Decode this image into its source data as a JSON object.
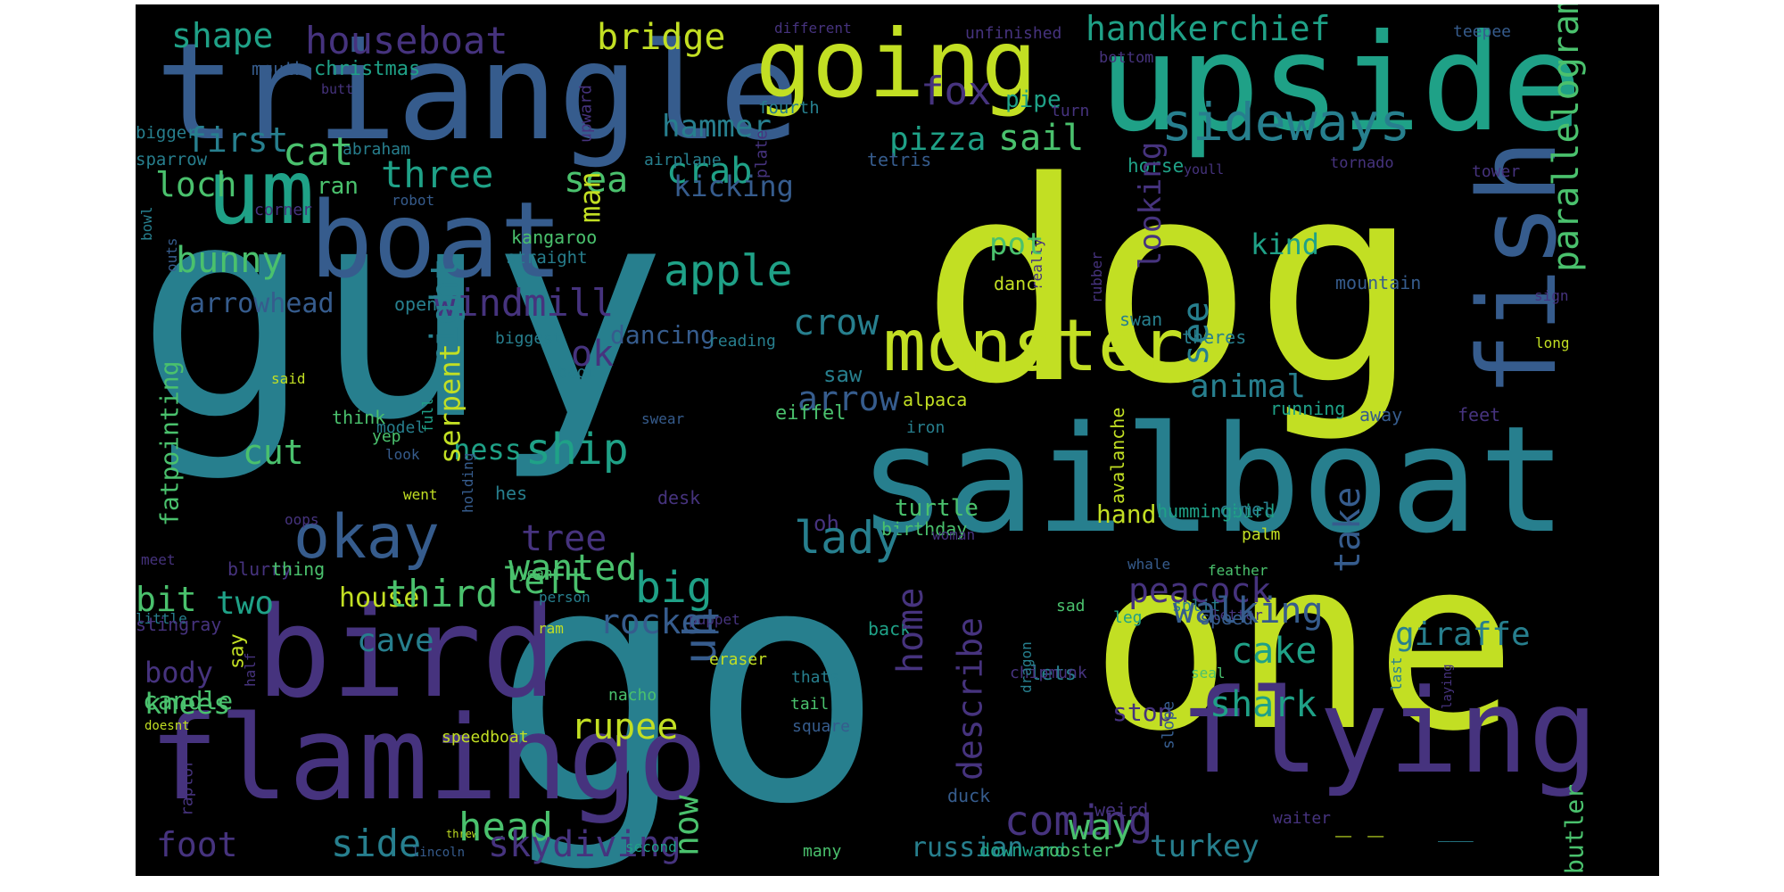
{
  "palette": [
    "#440154",
    "#46337e",
    "#365c8d",
    "#277f8e",
    "#1fa187",
    "#4ac16d",
    "#a0da39",
    "#fde725"
  ],
  "words": [
    {
      "text": "guy",
      "color": "#277f8e"
    },
    {
      "text": "go",
      "color": "#277f8e"
    },
    {
      "text": "dog",
      "color": "#c2df23"
    },
    {
      "text": "one",
      "color": "#c2df23"
    },
    {
      "text": "sailboat",
      "color": "#277f8e"
    },
    {
      "text": "triangle",
      "color": "#365c8d"
    },
    {
      "text": "upside",
      "color": "#1fa187"
    },
    {
      "text": "going",
      "color": "#c2df23"
    },
    {
      "text": "boat",
      "color": "#365c8d"
    },
    {
      "text": "um",
      "color": "#1fa187"
    },
    {
      "text": "bird",
      "color": "#46337e"
    },
    {
      "text": "flamingo",
      "color": "#46337e"
    },
    {
      "text": "flying",
      "color": "#46337e"
    },
    {
      "text": "fish",
      "color": "#365c8d"
    },
    {
      "text": "monster",
      "color": "#c2df23"
    },
    {
      "text": "okay",
      "color": "#365c8d"
    },
    {
      "text": "sideways",
      "color": "#277f8e"
    },
    {
      "text": "houseboat",
      "color": "#46337e"
    },
    {
      "text": "handkerchief",
      "color": "#1fa187"
    },
    {
      "text": "bridge",
      "color": "#c2df23"
    },
    {
      "text": "shape",
      "color": "#1fa187"
    },
    {
      "text": "christmas",
      "color": "#1fa187"
    },
    {
      "text": "mouth",
      "color": "#365c8d"
    },
    {
      "text": "butt",
      "color": "#46337e"
    },
    {
      "text": "different",
      "color": "#46337e"
    },
    {
      "text": "unfinished",
      "color": "#46337e"
    },
    {
      "text": "bottom",
      "color": "#46337e"
    },
    {
      "text": "teepee",
      "color": "#365c8d"
    },
    {
      "text": "parallelogram",
      "color": "#4ac16d"
    },
    {
      "text": "fox",
      "color": "#46337e"
    },
    {
      "text": "pipe",
      "color": "#1fa187"
    },
    {
      "text": "fourth",
      "color": "#277f8e"
    },
    {
      "text": "turn",
      "color": "#46337e"
    },
    {
      "text": "hammer",
      "color": "#277f8e"
    },
    {
      "text": "pizza",
      "color": "#1fa187"
    },
    {
      "text": "sail",
      "color": "#4ac16d"
    },
    {
      "text": "first",
      "color": "#277f8e"
    },
    {
      "text": "cat",
      "color": "#4ac16d"
    },
    {
      "text": "three",
      "color": "#1fa187"
    },
    {
      "text": "crab",
      "color": "#1fa187"
    },
    {
      "text": "sea",
      "color": "#4ac16d"
    },
    {
      "text": "upward",
      "color": "#46337e"
    },
    {
      "text": "bigger",
      "color": "#277f8e"
    },
    {
      "text": "sparrow",
      "color": "#277f8e"
    },
    {
      "text": "abraham",
      "color": "#277f8e"
    },
    {
      "text": "airplane",
      "color": "#277f8e"
    },
    {
      "text": "plate",
      "color": "#46337e"
    },
    {
      "text": "tetris",
      "color": "#365c8d"
    },
    {
      "text": "horse",
      "color": "#1fa187"
    },
    {
      "text": "youll",
      "color": "#46337e"
    },
    {
      "text": "tornado",
      "color": "#46337e"
    },
    {
      "text": "tower",
      "color": "#46337e"
    },
    {
      "text": "loch",
      "color": "#4ac16d"
    },
    {
      "text": "ran",
      "color": "#4ac16d"
    },
    {
      "text": "man",
      "color": "#c2df23"
    },
    {
      "text": "kicking",
      "color": "#365c8d"
    },
    {
      "text": "robot",
      "color": "#365c8d"
    },
    {
      "text": "bowl",
      "color": "#277f8e"
    },
    {
      "text": "corner",
      "color": "#46337e"
    },
    {
      "text": "outs",
      "color": "#365c8d"
    },
    {
      "text": "kangaroo",
      "color": "#4ac16d"
    },
    {
      "text": "straight",
      "color": "#277f8e"
    },
    {
      "text": "bunny",
      "color": "#4ac16d"
    },
    {
      "text": "really",
      "color": "#46337e"
    },
    {
      "text": "pot",
      "color": "#4ac16d"
    },
    {
      "text": "looking",
      "color": "#46337e"
    },
    {
      "text": "kind",
      "color": "#1fa187"
    },
    {
      "text": "sign",
      "color": "#46337e"
    },
    {
      "text": "mountain",
      "color": "#365c8d"
    },
    {
      "text": "apple",
      "color": "#1fa187"
    },
    {
      "text": "arrowhead",
      "color": "#365c8d"
    },
    {
      "text": "windmill",
      "color": "#46337e"
    },
    {
      "text": "right",
      "color": "#277f8e"
    },
    {
      "text": "open",
      "color": "#277f8e"
    },
    {
      "text": "crow",
      "color": "#277f8e"
    },
    {
      "text": "rubber",
      "color": "#46337e"
    },
    {
      "text": "dance",
      "color": "#c2df23"
    },
    {
      "text": "swan",
      "color": "#277f8e"
    },
    {
      "text": "long",
      "color": "#c2df23"
    },
    {
      "text": "fatpointing",
      "color": "#4ac16d"
    },
    {
      "text": "biggest",
      "color": "#277f8e"
    },
    {
      "text": "ok",
      "color": "#46337e"
    },
    {
      "text": "dancing",
      "color": "#365c8d"
    },
    {
      "text": "reading",
      "color": "#277f8e"
    },
    {
      "text": "see",
      "color": "#277f8e"
    },
    {
      "text": "theres",
      "color": "#277f8e"
    },
    {
      "text": "said",
      "color": "#c2df23"
    },
    {
      "text": "boot",
      "color": "#277f8e"
    },
    {
      "text": "saw",
      "color": "#277f8e"
    },
    {
      "text": "animal",
      "color": "#277f8e"
    },
    {
      "text": "arrow",
      "color": "#365c8d"
    },
    {
      "text": "alpaca",
      "color": "#c2df23"
    },
    {
      "text": "think",
      "color": "#4ac16d"
    },
    {
      "text": "full",
      "color": "#1fa187"
    },
    {
      "text": "yep",
      "color": "#4ac16d"
    },
    {
      "text": "ship",
      "color": "#1fa187"
    },
    {
      "text": "swear",
      "color": "#365c8d"
    },
    {
      "text": "eiffel",
      "color": "#4ac16d"
    },
    {
      "text": "iron",
      "color": "#277f8e"
    },
    {
      "text": "running",
      "color": "#1fa187"
    },
    {
      "text": "away",
      "color": "#365c8d"
    },
    {
      "text": "feet",
      "color": "#46337e"
    },
    {
      "text": "cut",
      "color": "#4ac16d"
    },
    {
      "text": "model",
      "color": "#277f8e"
    },
    {
      "text": "ness",
      "color": "#1fa187"
    },
    {
      "text": "serpent",
      "color": "#c2df23"
    },
    {
      "text": "look",
      "color": "#365c8d"
    },
    {
      "text": "oops",
      "color": "#46337e"
    },
    {
      "text": "hes",
      "color": "#277f8e"
    },
    {
      "text": "went",
      "color": "#c2df23"
    },
    {
      "text": "holding",
      "color": "#365c8d"
    },
    {
      "text": "desk",
      "color": "#46337e"
    },
    {
      "text": "oh",
      "color": "#46337e"
    },
    {
      "text": "turtle",
      "color": "#4ac16d"
    },
    {
      "text": "avalanche",
      "color": "#c2df23"
    },
    {
      "text": "hummingbird",
      "color": "#1fa187"
    },
    {
      "text": "camel",
      "color": "#277f8e"
    },
    {
      "text": "birthday",
      "color": "#4ac16d"
    },
    {
      "text": "hand",
      "color": "#c2df23"
    },
    {
      "text": "palm",
      "color": "#c2df23"
    },
    {
      "text": "lady",
      "color": "#277f8e"
    },
    {
      "text": "tree",
      "color": "#46337e"
    },
    {
      "text": "woman",
      "color": "#46337e"
    },
    {
      "text": "meet",
      "color": "#46337e"
    },
    {
      "text": "blurry",
      "color": "#46337e"
    },
    {
      "text": "thing",
      "color": "#4ac16d"
    },
    {
      "text": "wanted",
      "color": "#4ac16d"
    },
    {
      "text": "yeah",
      "color": "#4ac16d"
    },
    {
      "text": "whale",
      "color": "#365c8d"
    },
    {
      "text": "take",
      "color": "#365c8d"
    },
    {
      "text": "feather",
      "color": "#4ac16d"
    },
    {
      "text": "bit",
      "color": "#4ac16d"
    },
    {
      "text": "two",
      "color": "#1fa187"
    },
    {
      "text": "house",
      "color": "#c2df23"
    },
    {
      "text": "third",
      "color": "#4ac16d"
    },
    {
      "text": "left",
      "color": "#4ac16d"
    },
    {
      "text": "big",
      "color": "#1fa187"
    },
    {
      "text": "person",
      "color": "#277f8e"
    },
    {
      "text": "rocket",
      "color": "#365c8d"
    },
    {
      "text": "peacock",
      "color": "#46337e"
    },
    {
      "text": "leg",
      "color": "#1fa187"
    },
    {
      "text": "split",
      "color": "#277f8e"
    },
    {
      "text": "puppet",
      "color": "#46337e"
    },
    {
      "text": "letter",
      "color": "#46337e"
    },
    {
      "text": "sad",
      "color": "#4ac16d"
    },
    {
      "text": "uh",
      "color": "#365c8d"
    },
    {
      "text": "little",
      "color": "#277f8e"
    },
    {
      "text": "walking",
      "color": "#365c8d"
    },
    {
      "text": "cave",
      "color": "#277f8e"
    },
    {
      "text": "back",
      "color": "#1fa187"
    },
    {
      "text": "speed",
      "color": "#365c8d"
    },
    {
      "text": "giraffe",
      "color": "#277f8e"
    },
    {
      "text": "stingray",
      "color": "#46337e"
    },
    {
      "text": "ram",
      "color": "#c2df23"
    },
    {
      "text": "say",
      "color": "#c2df23"
    },
    {
      "text": "eraser",
      "color": "#c2df23"
    },
    {
      "text": "lets",
      "color": "#277f8e"
    },
    {
      "text": "cake",
      "color": "#1fa187"
    },
    {
      "text": "body",
      "color": "#46337e"
    },
    {
      "text": "home",
      "color": "#46337e"
    },
    {
      "text": "seal",
      "color": "#4ac16d"
    },
    {
      "text": "last",
      "color": "#277f8e"
    },
    {
      "text": "candle",
      "color": "#4ac16d"
    },
    {
      "text": "half",
      "color": "#46337e"
    },
    {
      "text": "knees",
      "color": "#4ac16d"
    },
    {
      "text": "nacho",
      "color": "#4ac16d"
    },
    {
      "text": "thats",
      "color": "#277f8e"
    },
    {
      "text": "chipmunk",
      "color": "#46337e"
    },
    {
      "text": "shark",
      "color": "#1fa187"
    },
    {
      "text": "doesnt",
      "color": "#c2df23"
    },
    {
      "text": "rupee",
      "color": "#c2df23"
    },
    {
      "text": "tail",
      "color": "#4ac16d"
    },
    {
      "text": "square",
      "color": "#365c8d"
    },
    {
      "text": "stop",
      "color": "#46337e"
    },
    {
      "text": "describe",
      "color": "#46337e"
    },
    {
      "text": "dragon",
      "color": "#277f8e"
    },
    {
      "text": "laying",
      "color": "#46337e"
    },
    {
      "text": "speedboat",
      "color": "#c2df23"
    },
    {
      "text": "slope",
      "color": "#365c8d"
    },
    {
      "text": "butler",
      "color": "#4ac16d"
    },
    {
      "text": "raptor",
      "color": "#46337e"
    },
    {
      "text": "duck",
      "color": "#365c8d"
    },
    {
      "text": "coming",
      "color": "#46337e"
    },
    {
      "text": "way",
      "color": "#4ac16d"
    },
    {
      "text": "threw",
      "color": "#c2df23"
    },
    {
      "text": "weird",
      "color": "#46337e"
    },
    {
      "text": "waiter",
      "color": "#46337e"
    },
    {
      "text": "head",
      "color": "#4ac16d"
    },
    {
      "text": "foot",
      "color": "#46337e"
    },
    {
      "text": "side",
      "color": "#277f8e"
    },
    {
      "text": "skydiving",
      "color": "#46337e"
    },
    {
      "text": "now",
      "color": "#4ac16d"
    },
    {
      "text": "lincoln",
      "color": "#365c8d"
    },
    {
      "text": "second",
      "color": "#1fa187"
    },
    {
      "text": "many",
      "color": "#4ac16d"
    },
    {
      "text": "russian",
      "color": "#277f8e"
    },
    {
      "text": "downward",
      "color": "#1fa187"
    },
    {
      "text": "rooster",
      "color": "#4ac16d"
    },
    {
      "text": "turkey",
      "color": "#277f8e"
    },
    {
      "text": "‾ ‾",
      "color": "#c2df23"
    },
    {
      "text": "‾‾‾",
      "color": "#277f8e"
    },
    {
      "text": "‾ ‾",
      "color": "#c2df23"
    }
  ]
}
